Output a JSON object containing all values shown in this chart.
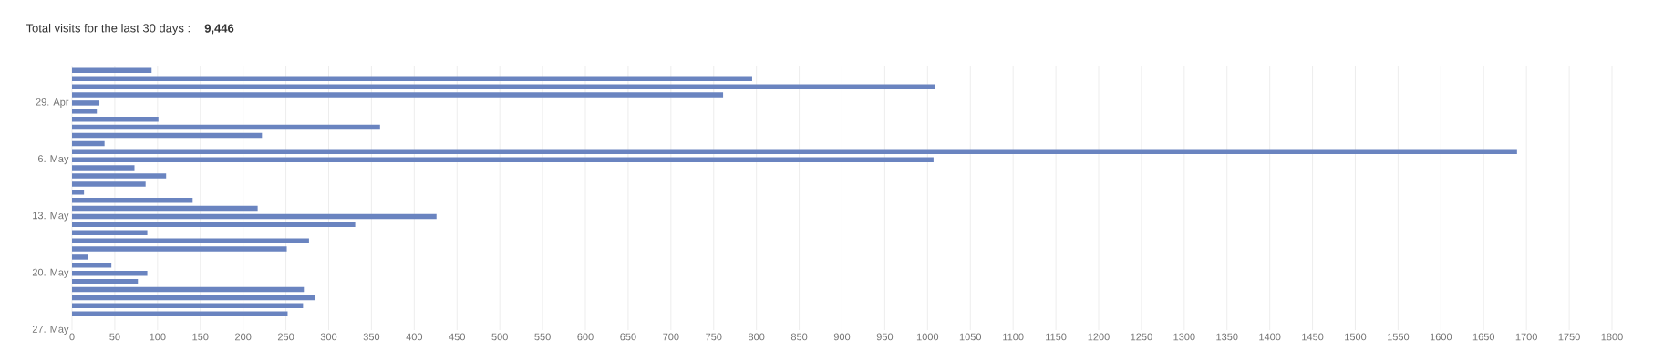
{
  "chart_data": {
    "type": "bar",
    "orientation": "horizontal",
    "title": "Total visits for the last 30 days :",
    "subtitle": "9,446",
    "categories": [
      null,
      null,
      null,
      null,
      "29. Apr",
      null,
      null,
      null,
      null,
      null,
      null,
      "6. May",
      null,
      null,
      null,
      null,
      null,
      null,
      "13. May",
      null,
      null,
      null,
      null,
      null,
      null,
      "20. May",
      null,
      null,
      null,
      null,
      null,
      null,
      "27. May"
    ],
    "values": [
      93,
      795,
      1009,
      761,
      32,
      29,
      101,
      360,
      222,
      38,
      1689,
      1007,
      73,
      110,
      86,
      14,
      141,
      217,
      426,
      331,
      88,
      277,
      251,
      19,
      46,
      88,
      77,
      271,
      284,
      270,
      252,
      null,
      null
    ],
    "color": "#6a84c0",
    "xlim": [
      0,
      1800
    ],
    "xticks": [
      0,
      50,
      100,
      150,
      200,
      250,
      300,
      350,
      400,
      450,
      500,
      550,
      600,
      650,
      700,
      750,
      800,
      850,
      900,
      950,
      1000,
      1050,
      1100,
      1150,
      1200,
      1250,
      1300,
      1350,
      1400,
      1450,
      1500,
      1550,
      1600,
      1650,
      1700,
      1750,
      1800
    ],
    "grid": "x"
  }
}
